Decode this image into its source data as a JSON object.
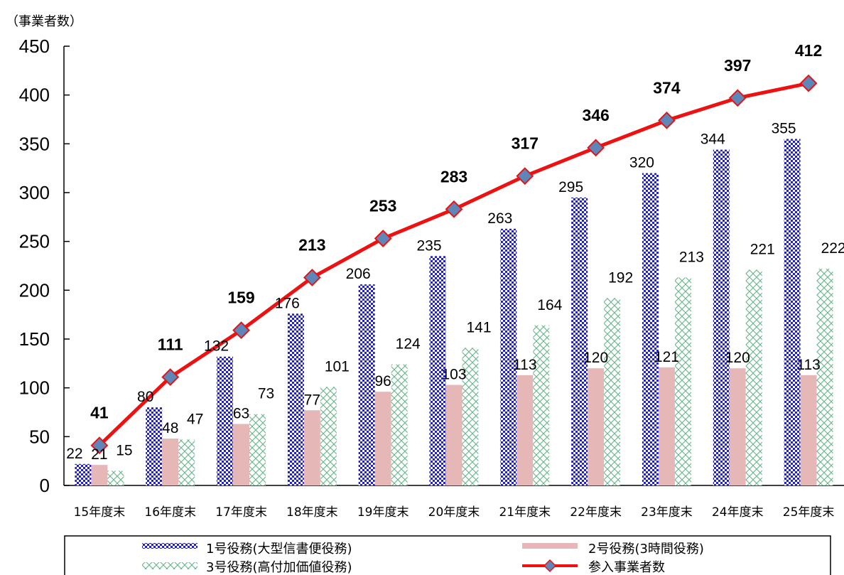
{
  "chart_data": {
    "type": "bar",
    "y_unit_label": "（事業者数）",
    "categories": [
      "15年度末",
      "16年度末",
      "17年度末",
      "18年度末",
      "19年度末",
      "20年度末",
      "21年度末",
      "22年度末",
      "23年度末",
      "24年度末",
      "25年度末"
    ],
    "ylim": [
      0,
      450
    ],
    "yticks": [
      0,
      50,
      100,
      150,
      200,
      250,
      300,
      350,
      400,
      450
    ],
    "series": [
      {
        "name": "1号役務(大型信書便役務)",
        "kind": "bar",
        "pattern": "blue-checker",
        "color": "#1f1fd6",
        "values": [
          22,
          80,
          132,
          176,
          206,
          235,
          263,
          295,
          320,
          344,
          355
        ]
      },
      {
        "name": "2号役務(3時間役務)",
        "kind": "bar",
        "pattern": "solid",
        "color": "#e6b7b7",
        "values": [
          21,
          48,
          63,
          77,
          96,
          103,
          113,
          120,
          121,
          120,
          113
        ]
      },
      {
        "name": "3号役務(高付加価値役務)",
        "kind": "bar",
        "pattern": "green-diamond",
        "color": "#7fbf9f",
        "values": [
          15,
          47,
          73,
          101,
          124,
          141,
          164,
          192,
          213,
          221,
          222
        ]
      },
      {
        "name": "参入事業者数",
        "kind": "line",
        "color": "#ee1111",
        "marker": "diamond",
        "marker_color": "#5f86b8",
        "values": [
          41,
          111,
          159,
          213,
          253,
          283,
          317,
          346,
          374,
          397,
          412
        ]
      }
    ],
    "grid": false,
    "legend": "bottom"
  }
}
